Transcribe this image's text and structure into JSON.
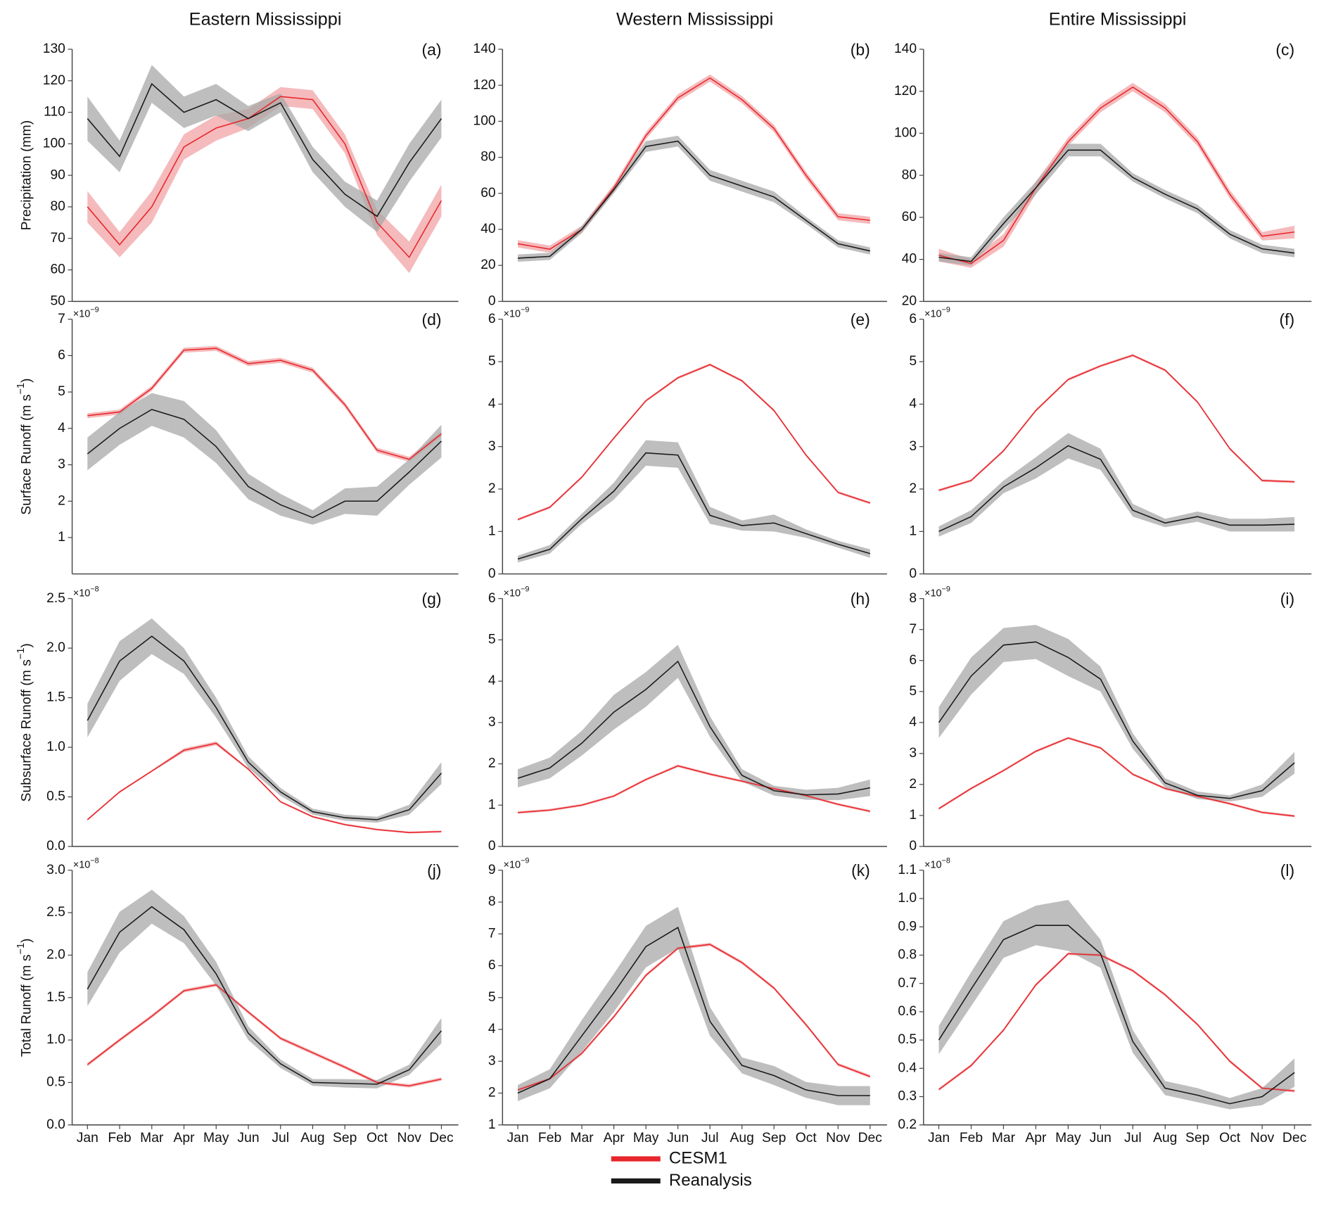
{
  "legend": {
    "names": [
      "CESM1",
      "Reanalysis"
    ],
    "colors": [
      "#e8262b",
      "#1a1a1a"
    ],
    "band_colors": [
      "#f2a3a5",
      "#a8a8a8"
    ]
  },
  "chart_data": [
    {
      "type": "line",
      "title": "Eastern Mississippi",
      "label": "(a)",
      "ylabel": "Precipitation (mm)",
      "ylim": [
        50,
        130
      ],
      "yticks": [
        50,
        60,
        70,
        80,
        90,
        100,
        110,
        120,
        130
      ],
      "series": [
        {
          "values": [
            80,
            68,
            80,
            99,
            105,
            108,
            115,
            114,
            100,
            75,
            64,
            82
          ],
          "spread": [
            5,
            4,
            5,
            4,
            4,
            3,
            3,
            3,
            3,
            4,
            5,
            5
          ]
        },
        {
          "values": [
            108,
            96,
            119,
            110,
            114,
            108,
            113,
            95,
            84,
            77,
            94,
            108
          ],
          "spread": [
            7,
            5,
            6,
            5,
            5,
            4,
            3,
            4,
            4,
            5,
            6,
            6
          ]
        }
      ]
    },
    {
      "type": "line",
      "title": "Western Mississippi",
      "label": "(b)",
      "ylim": [
        0,
        140
      ],
      "yticks": [
        0,
        20,
        40,
        60,
        80,
        100,
        120,
        140
      ],
      "series": [
        {
          "values": [
            32,
            29,
            40,
            63,
            92,
            113,
            124,
            112,
            96,
            70,
            47,
            45
          ],
          "spread": [
            2,
            2,
            2,
            2,
            2,
            2,
            2,
            2,
            2,
            2,
            2,
            2
          ]
        },
        {
          "values": [
            24,
            25,
            40,
            62,
            86,
            89,
            70,
            64,
            58,
            45,
            32,
            28
          ],
          "spread": [
            2,
            2,
            2,
            2,
            3,
            3,
            3,
            3,
            3,
            2,
            2,
            2
          ]
        }
      ]
    },
    {
      "type": "line",
      "title": "Entire Mississippi",
      "label": "(c)",
      "ylim": [
        20,
        140
      ],
      "yticks": [
        20,
        40,
        60,
        80,
        100,
        120,
        140
      ],
      "series": [
        {
          "values": [
            42,
            38,
            49,
            74,
            96,
            112,
            122,
            112,
            96,
            71,
            51,
            53
          ],
          "spread": [
            3,
            2,
            3,
            3,
            2,
            2,
            2,
            2,
            2,
            2,
            2,
            3
          ]
        },
        {
          "values": [
            41,
            39,
            57,
            74,
            92,
            92,
            79,
            71,
            64,
            52,
            45,
            43
          ],
          "spread": [
            2,
            2,
            3,
            3,
            3,
            3,
            2,
            2,
            2,
            2,
            2,
            2
          ]
        }
      ]
    },
    {
      "type": "line",
      "label": "(d)",
      "ylabel": "Surface Runoff (m s",
      "ylabel_sup": "−1",
      "ylabel_close": ")",
      "y_exp_base": "×10",
      "y_exp": "−9",
      "ylim": [
        0,
        7
      ],
      "yticks": [
        1,
        2,
        3,
        4,
        5,
        6,
        7
      ],
      "series": [
        {
          "values": [
            4.35,
            4.45,
            5.1,
            6.15,
            6.2,
            5.78,
            5.87,
            5.6,
            4.65,
            3.4,
            3.15,
            3.85
          ],
          "spread": [
            0.07,
            0.07,
            0.07,
            0.07,
            0.07,
            0.07,
            0.07,
            0.07,
            0.07,
            0.07,
            0.07,
            0.07
          ]
        },
        {
          "values": [
            3.3,
            4.0,
            4.52,
            4.25,
            3.5,
            2.4,
            1.9,
            1.55,
            2.0,
            2.0,
            2.8,
            3.65
          ],
          "spread": [
            0.45,
            0.45,
            0.45,
            0.5,
            0.45,
            0.35,
            0.3,
            0.2,
            0.35,
            0.4,
            0.35,
            0.45
          ]
        }
      ]
    },
    {
      "type": "line",
      "label": "(e)",
      "y_exp_base": "×10",
      "y_exp": "−9",
      "ylim": [
        0,
        6
      ],
      "yticks": [
        0,
        1,
        2,
        3,
        4,
        5,
        6
      ],
      "series": [
        {
          "values": [
            1.28,
            1.57,
            2.28,
            3.2,
            4.08,
            4.62,
            4.93,
            4.55,
            3.85,
            2.8,
            1.92,
            1.67
          ],
          "spread": [
            0.03,
            0.03,
            0.03,
            0.03,
            0.03,
            0.03,
            0.03,
            0.03,
            0.03,
            0.03,
            0.03,
            0.03
          ]
        },
        {
          "values": [
            0.35,
            0.58,
            1.3,
            1.95,
            2.85,
            2.8,
            1.38,
            1.14,
            1.2,
            0.95,
            0.7,
            0.48
          ],
          "spread": [
            0.08,
            0.1,
            0.12,
            0.2,
            0.3,
            0.3,
            0.2,
            0.12,
            0.2,
            0.1,
            0.08,
            0.1
          ]
        }
      ]
    },
    {
      "type": "line",
      "label": "(f)",
      "y_exp_base": "×10",
      "y_exp": "−9",
      "ylim": [
        0,
        6
      ],
      "yticks": [
        0,
        1,
        2,
        3,
        4,
        5,
        6
      ],
      "series": [
        {
          "values": [
            1.97,
            2.2,
            2.9,
            3.85,
            4.58,
            4.9,
            5.15,
            4.8,
            4.05,
            2.95,
            2.2,
            2.17
          ],
          "spread": [
            0.03,
            0.03,
            0.03,
            0.03,
            0.03,
            0.03,
            0.03,
            0.03,
            0.03,
            0.03,
            0.03,
            0.03
          ]
        },
        {
          "values": [
            1.0,
            1.35,
            2.05,
            2.5,
            3.02,
            2.7,
            1.5,
            1.2,
            1.35,
            1.15,
            1.15,
            1.17
          ],
          "spread": [
            0.12,
            0.15,
            0.15,
            0.25,
            0.3,
            0.25,
            0.15,
            0.1,
            0.12,
            0.15,
            0.15,
            0.17
          ]
        }
      ]
    },
    {
      "type": "line",
      "label": "(g)",
      "ylabel": "Subsurface Runoff (m s",
      "ylabel_sup": "−1",
      "ylabel_close": ")",
      "y_exp_base": "×10",
      "y_exp": "−8",
      "ylim": [
        0,
        2.5
      ],
      "yticks": [
        {
          "value": 0,
          "label": "0.0"
        },
        0.5,
        {
          "value": 1,
          "label": "1.0"
        },
        1.5,
        {
          "value": 2,
          "label": "2.0"
        },
        2.5
      ],
      "series": [
        {
          "values": [
            0.27,
            0.55,
            0.76,
            0.97,
            1.04,
            0.78,
            0.45,
            0.3,
            0.22,
            0.17,
            0.14,
            0.15
          ],
          "spread": [
            0.01,
            0.01,
            0.01,
            0.02,
            0.02,
            0.01,
            0.01,
            0.01,
            0.01,
            0.01,
            0.01,
            0.01
          ]
        },
        {
          "values": [
            1.27,
            1.87,
            2.12,
            1.87,
            1.4,
            0.85,
            0.55,
            0.35,
            0.29,
            0.27,
            0.37,
            0.74
          ],
          "spread": [
            0.17,
            0.2,
            0.18,
            0.13,
            0.1,
            0.06,
            0.04,
            0.03,
            0.03,
            0.03,
            0.05,
            0.11
          ]
        }
      ]
    },
    {
      "type": "line",
      "label": "(h)",
      "y_exp_base": "×10",
      "y_exp": "−9",
      "ylim": [
        0,
        6
      ],
      "yticks": [
        0,
        1,
        2,
        3,
        4,
        5,
        6
      ],
      "series": [
        {
          "values": [
            0.82,
            0.88,
            1.0,
            1.22,
            1.62,
            1.95,
            1.75,
            1.58,
            1.4,
            1.23,
            1.02,
            0.85
          ],
          "spread": [
            0.03,
            0.03,
            0.03,
            0.03,
            0.03,
            0.03,
            0.03,
            0.03,
            0.03,
            0.03,
            0.03,
            0.03
          ]
        },
        {
          "values": [
            1.65,
            1.9,
            2.5,
            3.25,
            3.8,
            4.48,
            2.9,
            1.72,
            1.35,
            1.25,
            1.27,
            1.42
          ],
          "spread": [
            0.22,
            0.25,
            0.3,
            0.42,
            0.42,
            0.4,
            0.25,
            0.15,
            0.12,
            0.12,
            0.15,
            0.2
          ]
        }
      ]
    },
    {
      "type": "line",
      "label": "(i)",
      "y_exp_base": "×10",
      "y_exp": "−9",
      "ylim": [
        0,
        8
      ],
      "yticks": [
        0,
        1,
        2,
        3,
        4,
        5,
        6,
        7,
        8
      ],
      "series": [
        {
          "values": [
            1.22,
            1.87,
            2.45,
            3.07,
            3.5,
            3.18,
            2.33,
            1.87,
            1.62,
            1.38,
            1.1,
            0.98
          ],
          "spread": [
            0.04,
            0.04,
            0.04,
            0.04,
            0.04,
            0.04,
            0.04,
            0.04,
            0.04,
            0.04,
            0.04,
            0.04
          ]
        },
        {
          "values": [
            4.0,
            5.5,
            6.5,
            6.6,
            6.1,
            5.4,
            3.4,
            2.05,
            1.65,
            1.55,
            1.8,
            2.7
          ],
          "spread": [
            0.5,
            0.6,
            0.55,
            0.55,
            0.6,
            0.4,
            0.25,
            0.15,
            0.12,
            0.1,
            0.2,
            0.35
          ]
        }
      ]
    },
    {
      "type": "line",
      "label": "(j)",
      "ylabel": "Total Runoff (m s",
      "ylabel_sup": "−1",
      "ylabel_close": ")",
      "y_exp_base": "×10",
      "y_exp": "−8",
      "ylim": [
        0,
        3
      ],
      "yticks": [
        {
          "value": 0,
          "label": "0.0"
        },
        0.5,
        {
          "value": 1,
          "label": "1.0"
        },
        1.5,
        {
          "value": 2,
          "label": "2.0"
        },
        2.5,
        {
          "value": 3,
          "label": "3.0"
        }
      ],
      "categories": [
        "Jan",
        "Feb",
        "Mar",
        "Apr",
        "May",
        "Jun",
        "Jul",
        "Aug",
        "Sep",
        "Oct",
        "Nov",
        "Dec"
      ],
      "series": [
        {
          "values": [
            0.71,
            1.0,
            1.28,
            1.58,
            1.65,
            1.33,
            1.02,
            0.85,
            0.68,
            0.5,
            0.46,
            0.54
          ],
          "spread": [
            0.02,
            0.02,
            0.02,
            0.02,
            0.02,
            0.02,
            0.02,
            0.02,
            0.02,
            0.02,
            0.02,
            0.02
          ]
        },
        {
          "values": [
            1.6,
            2.27,
            2.57,
            2.3,
            1.78,
            1.08,
            0.72,
            0.5,
            0.49,
            0.48,
            0.65,
            1.11
          ],
          "spread": [
            0.2,
            0.24,
            0.2,
            0.16,
            0.14,
            0.08,
            0.05,
            0.04,
            0.05,
            0.05,
            0.06,
            0.15
          ]
        }
      ]
    },
    {
      "type": "line",
      "label": "(k)",
      "y_exp_base": "×10",
      "y_exp": "−9",
      "ylim": [
        1,
        9
      ],
      "yticks": [
        1,
        2,
        3,
        4,
        5,
        6,
        7,
        8,
        9
      ],
      "categories": [
        "Jan",
        "Feb",
        "Mar",
        "Apr",
        "May",
        "Jun",
        "Jul",
        "Aug",
        "Sep",
        "Oct",
        "Nov",
        "Dec"
      ],
      "series": [
        {
          "values": [
            2.1,
            2.45,
            3.25,
            4.4,
            5.7,
            6.55,
            6.67,
            6.1,
            5.3,
            4.15,
            2.9,
            2.52
          ],
          "spread": [
            0.05,
            0.05,
            0.05,
            0.05,
            0.05,
            0.05,
            0.05,
            0.05,
            0.05,
            0.05,
            0.05,
            0.05
          ]
        },
        {
          "values": [
            2.0,
            2.45,
            3.8,
            5.15,
            6.6,
            7.2,
            4.25,
            2.87,
            2.55,
            2.1,
            1.92,
            1.92
          ],
          "spread": [
            0.25,
            0.3,
            0.5,
            0.6,
            0.65,
            0.65,
            0.45,
            0.25,
            0.3,
            0.25,
            0.3,
            0.3
          ]
        }
      ]
    },
    {
      "type": "line",
      "label": "(l)",
      "y_exp_base": "×10",
      "y_exp": "−8",
      "ylim": [
        0.2,
        1.1
      ],
      "yticks": [
        0.2,
        0.3,
        0.4,
        0.5,
        0.6,
        0.7,
        0.8,
        0.9,
        {
          "value": 1,
          "label": "1.0"
        },
        1.1
      ],
      "categories": [
        "Jan",
        "Feb",
        "Mar",
        "Apr",
        "May",
        "Jun",
        "Jul",
        "Aug",
        "Sep",
        "Oct",
        "Nov",
        "Dec"
      ],
      "series": [
        {
          "values": [
            0.325,
            0.41,
            0.535,
            0.695,
            0.805,
            0.8,
            0.745,
            0.66,
            0.555,
            0.425,
            0.33,
            0.32
          ],
          "spread": [
            0.005,
            0.005,
            0.005,
            0.005,
            0.005,
            0.005,
            0.005,
            0.005,
            0.005,
            0.005,
            0.005,
            0.005
          ]
        },
        {
          "values": [
            0.5,
            0.68,
            0.855,
            0.905,
            0.905,
            0.805,
            0.495,
            0.33,
            0.305,
            0.275,
            0.3,
            0.385
          ],
          "spread": [
            0.05,
            0.06,
            0.065,
            0.07,
            0.09,
            0.05,
            0.04,
            0.025,
            0.025,
            0.02,
            0.03,
            0.05
          ]
        }
      ]
    }
  ]
}
